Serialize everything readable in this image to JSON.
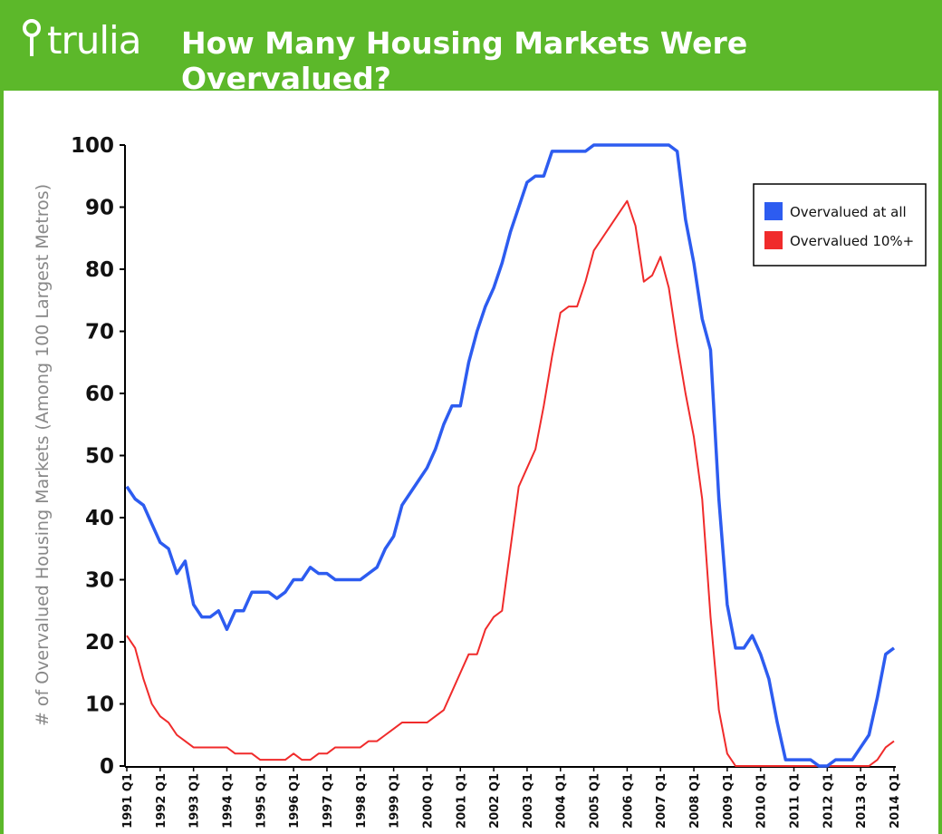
{
  "brand": "trulia",
  "chart_data": {
    "type": "line",
    "title": "How Many Housing Markets Were Overvalued?",
    "y_label": "# of Overvalued Housing Markets (Among 100 Largest Metros)",
    "categories": [
      "1991 Q1",
      null,
      null,
      null,
      "1992 Q1",
      null,
      null,
      null,
      "1993 Q1",
      null,
      null,
      null,
      "1994 Q1",
      null,
      null,
      null,
      "1995 Q1",
      null,
      null,
      null,
      "1996 Q1",
      null,
      null,
      null,
      "1997 Q1",
      null,
      null,
      null,
      "1998 Q1",
      null,
      null,
      null,
      "1999 Q1",
      null,
      null,
      null,
      "2000 Q1",
      null,
      null,
      null,
      "2001 Q1",
      null,
      null,
      null,
      "2002 Q1",
      null,
      null,
      null,
      "2003 Q1",
      null,
      null,
      null,
      "2004 Q1",
      null,
      null,
      null,
      "2005 Q1",
      null,
      null,
      null,
      "2006 Q1",
      null,
      null,
      null,
      "2007 Q1",
      null,
      null,
      null,
      "2008 Q1",
      null,
      null,
      null,
      "2009 Q1",
      null,
      null,
      null,
      "2010 Q1",
      null,
      null,
      null,
      "2011 Q1",
      null,
      null,
      null,
      "2012 Q1",
      null,
      null,
      null,
      "2013 Q1",
      null,
      null,
      null,
      "2014 Q1"
    ],
    "series": [
      {
        "name": "Overvalued at all",
        "color": "#2d5cf0",
        "values": [
          45,
          43,
          42,
          39,
          36,
          35,
          31,
          33,
          26,
          24,
          24,
          25,
          22,
          25,
          25,
          28,
          28,
          28,
          27,
          28,
          30,
          30,
          32,
          31,
          31,
          30,
          30,
          30,
          30,
          31,
          32,
          35,
          37,
          42,
          44,
          46,
          48,
          51,
          55,
          58,
          58,
          65,
          70,
          74,
          77,
          81,
          86,
          90,
          94,
          95,
          95,
          99,
          99,
          99,
          99,
          99,
          100,
          100,
          100,
          100,
          100,
          100,
          100,
          100,
          100,
          100,
          99,
          88,
          81,
          72,
          67,
          43,
          26,
          19,
          19,
          21,
          18,
          14,
          7,
          1,
          1,
          1,
          1,
          0,
          0,
          1,
          1,
          1,
          3,
          5,
          11,
          18,
          19
        ]
      },
      {
        "name": "Overvalued 10%+",
        "color": "#f02b2b",
        "values": [
          21,
          19,
          14,
          10,
          8,
          7,
          5,
          4,
          3,
          3,
          3,
          3,
          3,
          2,
          2,
          2,
          1,
          1,
          1,
          1,
          2,
          1,
          1,
          2,
          2,
          3,
          3,
          3,
          3,
          4,
          4,
          5,
          6,
          7,
          7,
          7,
          7,
          8,
          9,
          12,
          15,
          18,
          18,
          22,
          24,
          25,
          35,
          45,
          48,
          51,
          58,
          66,
          73,
          74,
          74,
          78,
          83,
          85,
          87,
          89,
          91,
          87,
          78,
          79,
          82,
          77,
          68,
          60,
          53,
          43,
          24,
          9,
          2,
          0,
          0,
          0,
          0,
          0,
          0,
          0,
          0,
          0,
          0,
          0,
          0,
          0,
          0,
          0,
          0,
          0,
          1,
          3,
          4
        ]
      }
    ],
    "ylim": [
      0,
      100
    ],
    "yticks": [
      0,
      10,
      20,
      30,
      40,
      50,
      60,
      70,
      80,
      90,
      100
    ],
    "legend": "upper right"
  }
}
